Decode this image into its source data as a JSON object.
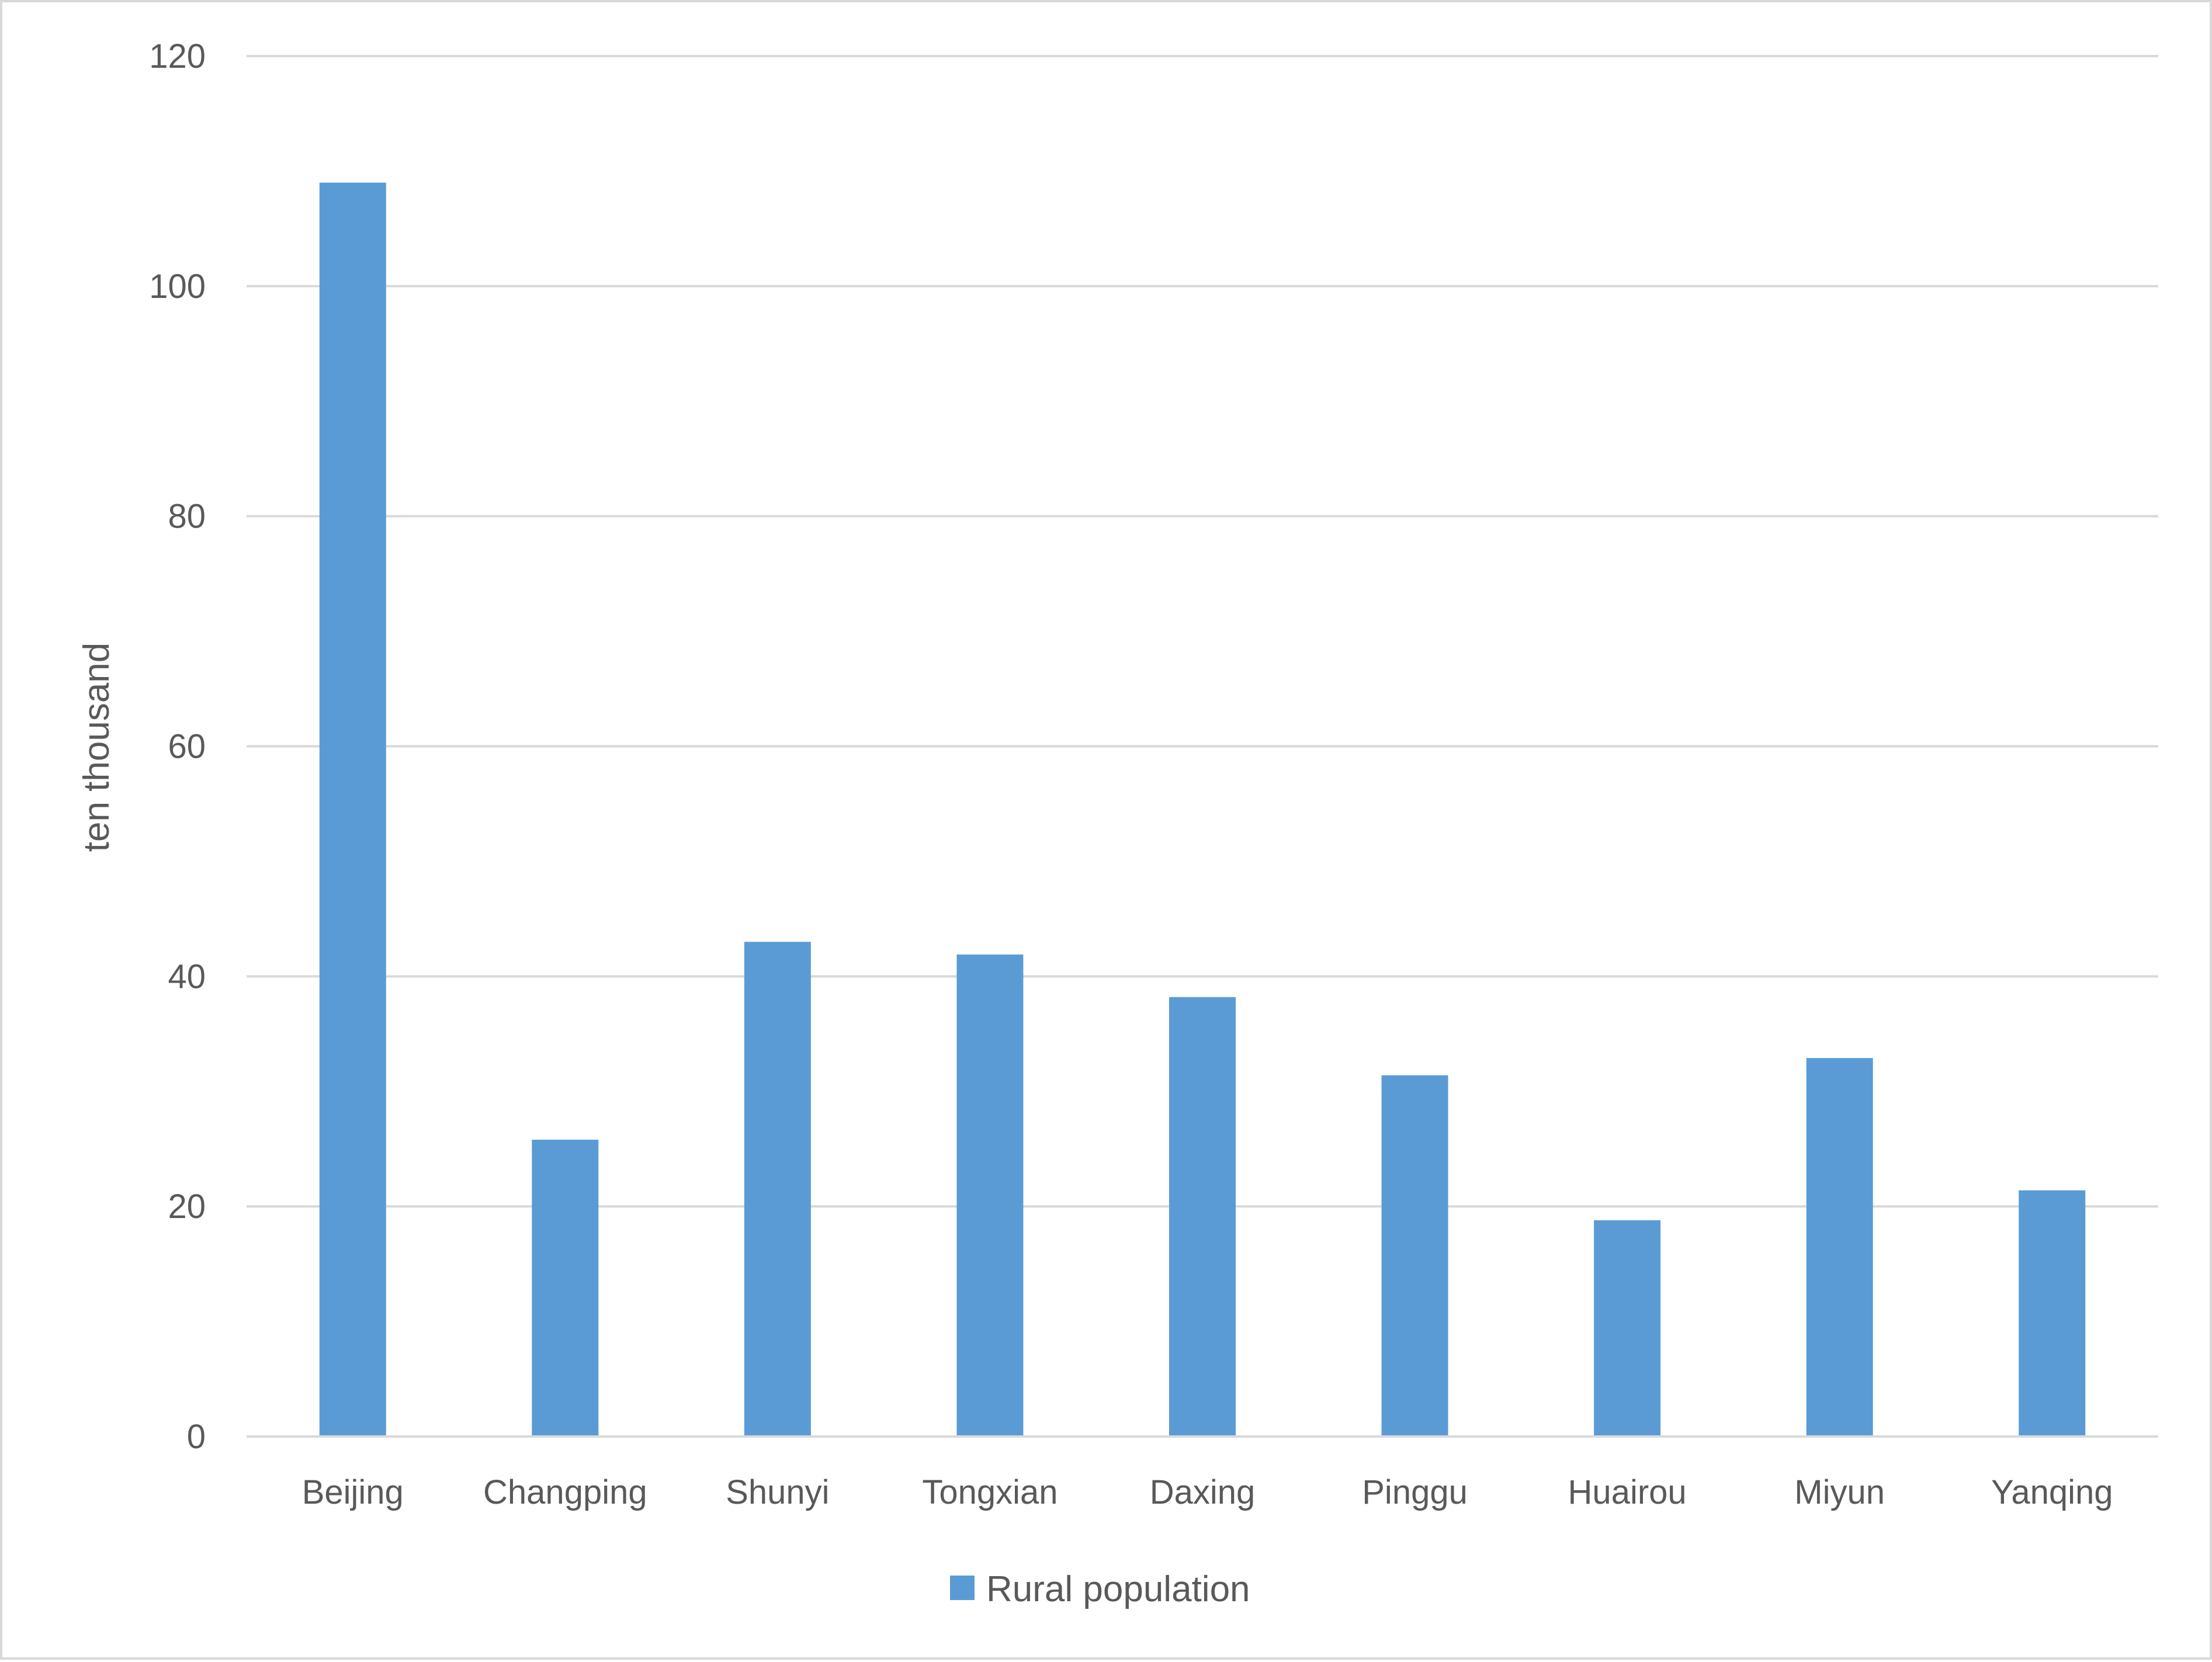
{
  "chart_data": {
    "type": "bar",
    "title": "",
    "xlabel": "",
    "ylabel": "ten thousand",
    "ylim": [
      0,
      120
    ],
    "y_ticks": [
      "0",
      "20",
      "40",
      "60",
      "80",
      "100",
      "120"
    ],
    "grid": true,
    "legend_position": "bottom",
    "categories": [
      "Beijing",
      "Changping",
      "Shunyi",
      "Tongxian",
      "Daxing",
      "Pinggu",
      "Huairou",
      "Miyun",
      "Yanqing"
    ],
    "series": [
      {
        "name": "Rural population",
        "color": "#5b9bd5",
        "values": [
          109,
          25.8,
          43,
          41.9,
          38.2,
          31.4,
          18.8,
          32.9,
          21.4
        ]
      }
    ]
  }
}
